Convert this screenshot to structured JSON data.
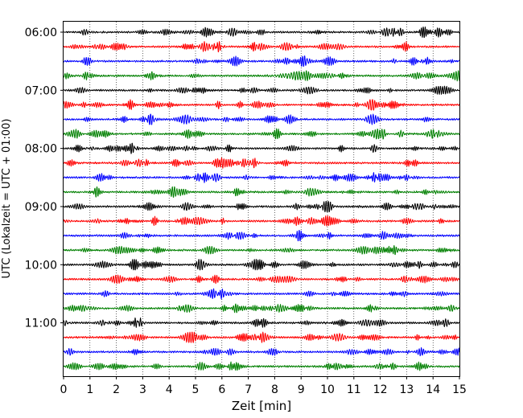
{
  "chart_data": {
    "type": "line",
    "subtype": "helicorder",
    "title": "",
    "xlabel": "Zeit  [min]",
    "ylabel": "UTC (Lokalzeit = UTC + 01:00)",
    "xlim": [
      0,
      15
    ],
    "x_ticks": [
      0,
      1,
      2,
      3,
      4,
      5,
      6,
      7,
      8,
      9,
      10,
      11,
      12,
      13,
      14,
      15
    ],
    "x_tick_labels": [
      "0",
      "1",
      "2",
      "3",
      "4",
      "5",
      "6",
      "7",
      "8",
      "9",
      "10",
      "11",
      "12",
      "13",
      "14",
      "15"
    ],
    "grid": "x-only-dotted",
    "trace_interval_min": 15,
    "y_tick_labels": [
      "06:00",
      "07:00",
      "08:00",
      "09:00",
      "10:00",
      "11:00"
    ],
    "y_tick_rows": [
      0,
      4,
      8,
      12,
      16,
      20
    ],
    "row_colors": [
      "#000000",
      "#ff0000",
      "#0000ff",
      "#008000"
    ],
    "series": [
      {
        "start": "06:00",
        "color": "#000000"
      },
      {
        "start": "06:15",
        "color": "#ff0000"
      },
      {
        "start": "06:30",
        "color": "#0000ff"
      },
      {
        "start": "06:45",
        "color": "#008000"
      },
      {
        "start": "07:00",
        "color": "#000000"
      },
      {
        "start": "07:15",
        "color": "#ff0000"
      },
      {
        "start": "07:30",
        "color": "#0000ff"
      },
      {
        "start": "07:45",
        "color": "#008000"
      },
      {
        "start": "08:00",
        "color": "#000000"
      },
      {
        "start": "08:15",
        "color": "#ff0000"
      },
      {
        "start": "08:30",
        "color": "#0000ff"
      },
      {
        "start": "08:45",
        "color": "#008000"
      },
      {
        "start": "09:00",
        "color": "#000000"
      },
      {
        "start": "09:15",
        "color": "#ff0000"
      },
      {
        "start": "09:30",
        "color": "#0000ff"
      },
      {
        "start": "09:45",
        "color": "#008000"
      },
      {
        "start": "10:00",
        "color": "#000000"
      },
      {
        "start": "10:15",
        "color": "#ff0000"
      },
      {
        "start": "10:30",
        "color": "#0000ff"
      },
      {
        "start": "10:45",
        "color": "#008000"
      },
      {
        "start": "11:00",
        "color": "#000000"
      },
      {
        "start": "11:15",
        "color": "#ff0000"
      },
      {
        "start": "11:30",
        "color": "#0000ff"
      },
      {
        "start": "11:45",
        "color": "#008000"
      }
    ]
  }
}
